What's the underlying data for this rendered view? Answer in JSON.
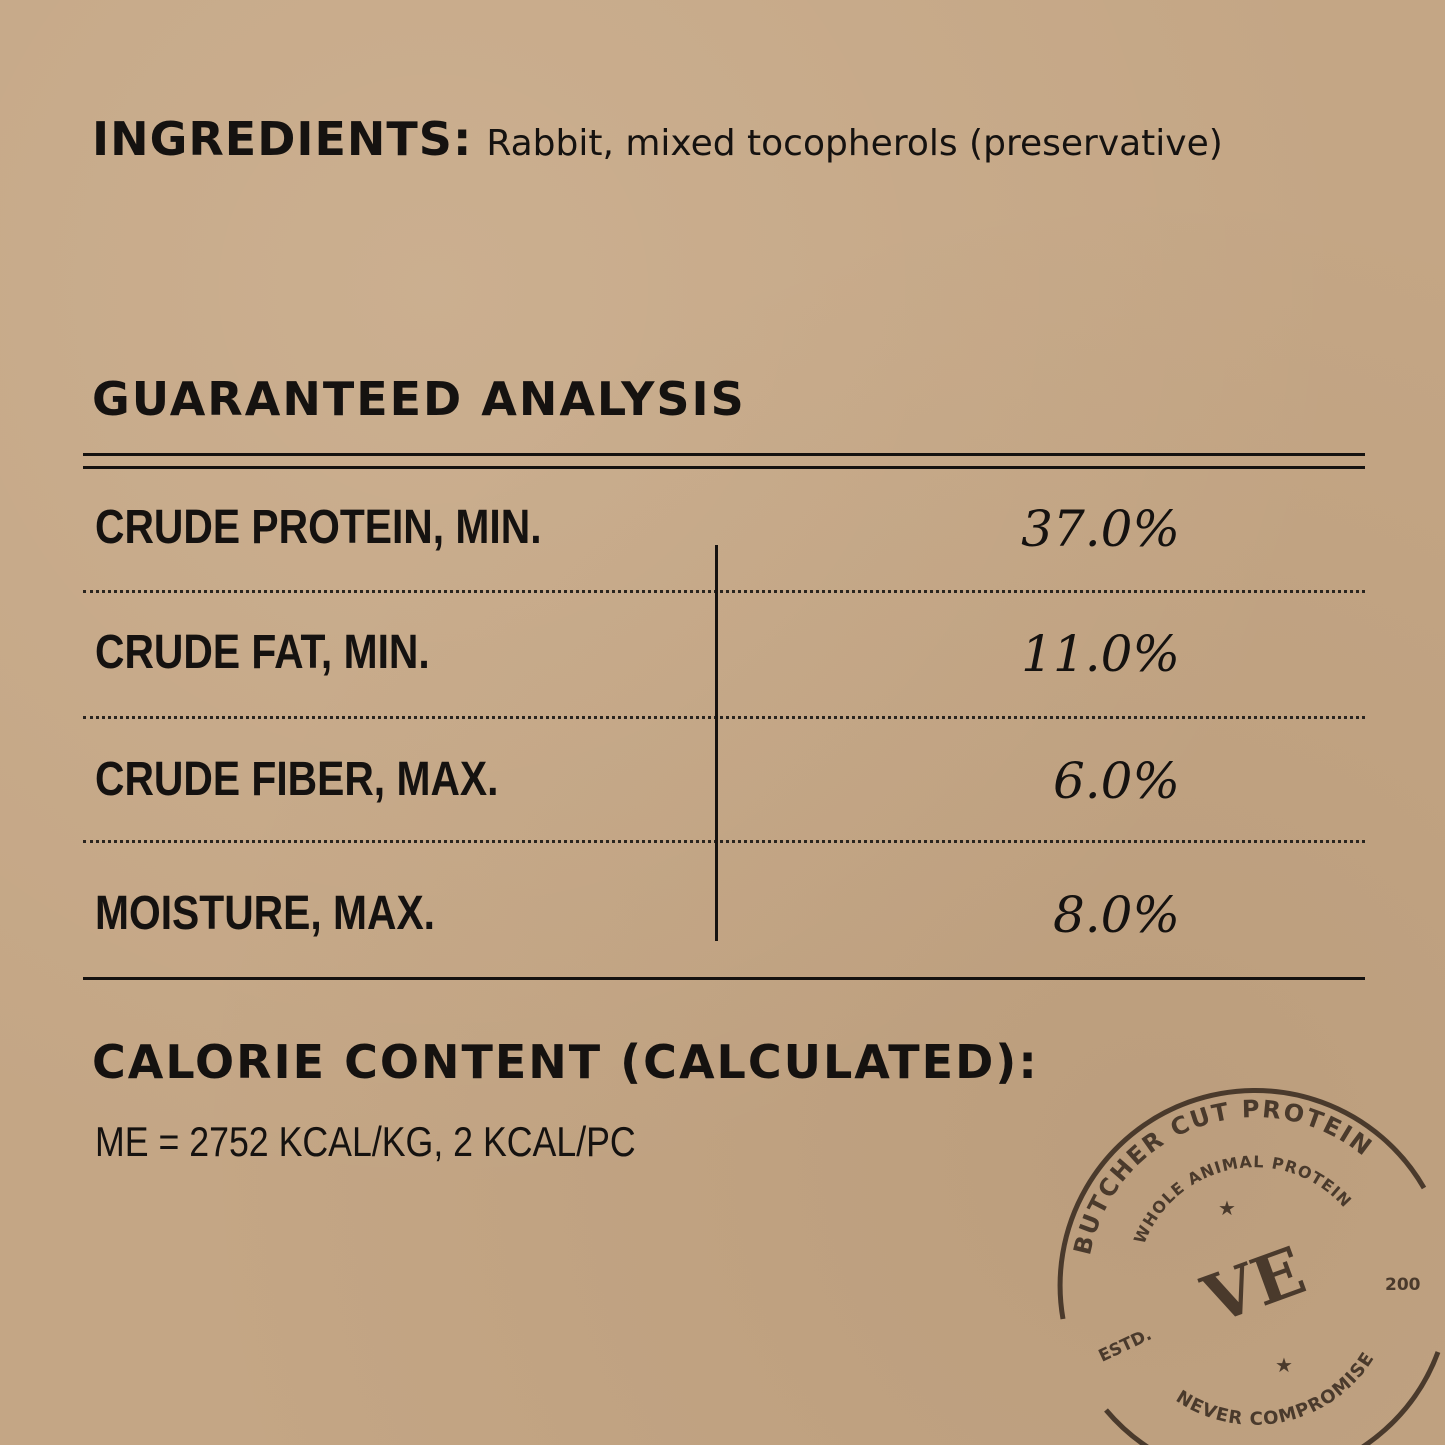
{
  "ingredients": {
    "label": "INGREDIENTS:",
    "text": "Rabbit, mixed tocopherols (preservative)"
  },
  "analysis": {
    "title": "GUARANTEED ANALYSIS",
    "rows": [
      {
        "label": "CRUDE PROTEIN, MIN.",
        "value": "37.0%"
      },
      {
        "label": "CRUDE FAT, MIN.",
        "value": "11.0%"
      },
      {
        "label": "CRUDE FIBER, MAX.",
        "value": "6.0%"
      },
      {
        "label": "MOISTURE, MAX.",
        "value": "8.0%"
      }
    ]
  },
  "calorie": {
    "title": "CALORIE CONTENT (CALCULATED):",
    "text": "ME = 2752 KCAL/KG, 2 KCAL/PC"
  },
  "stamp": {
    "outer": "BUTCHER CUT PROTEIN",
    "inner": "WHOLE ANIMAL PROTEIN",
    "logo": "VE",
    "estd": "ESTD.",
    "year": "200",
    "bottom": "NEVER COMPROMISE",
    "color": "#4a3a2c"
  },
  "colors": {
    "background": "#c4a685",
    "ink": "#151210"
  }
}
